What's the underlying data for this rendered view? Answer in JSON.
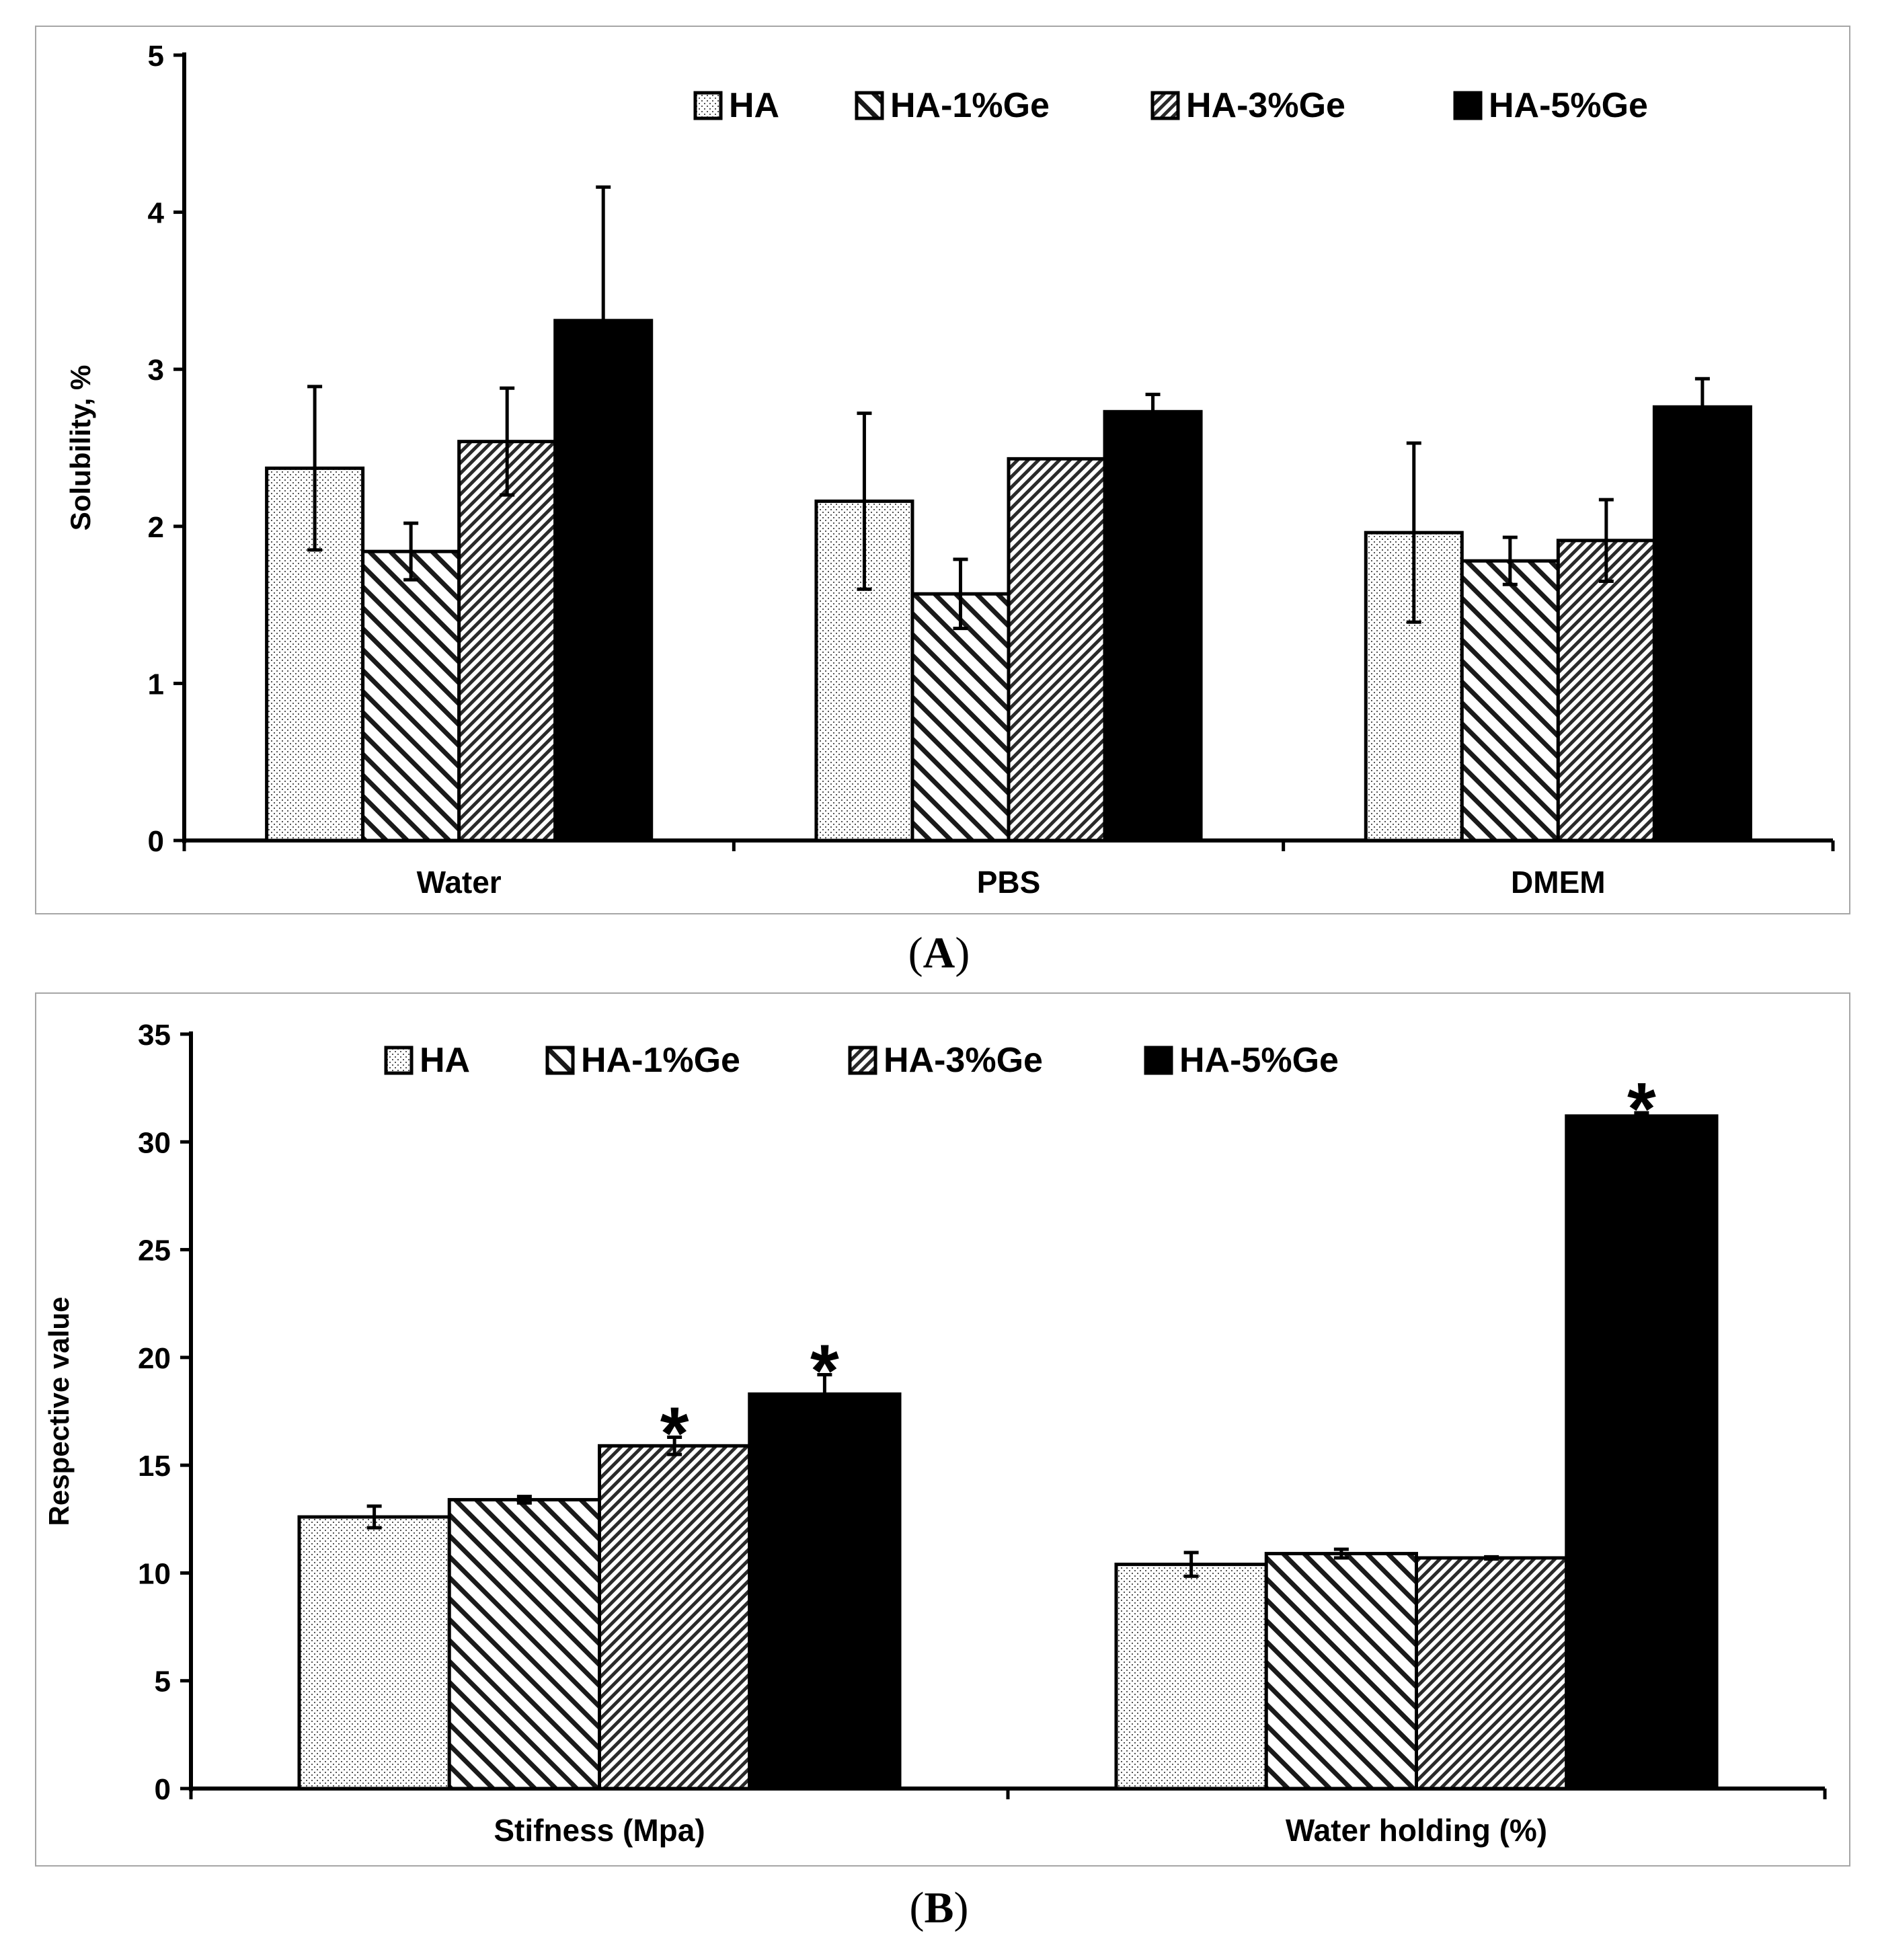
{
  "chart_data": [
    {
      "panel": "A",
      "caption_letter": "A",
      "type": "bar",
      "title": "",
      "xlabel": "",
      "ylabel": "Solubility, %",
      "ylim": [
        0,
        5
      ],
      "yticks": [
        0,
        1,
        2,
        3,
        4,
        5
      ],
      "categories": [
        "Water",
        "PBS",
        "DMEM"
      ],
      "legend_position": "top",
      "series": [
        {
          "name": "HA",
          "pattern": "dots",
          "values": [
            2.37,
            2.16,
            1.96
          ],
          "errors": [
            0.52,
            0.56,
            0.57
          ],
          "significant": [
            false,
            false,
            false
          ]
        },
        {
          "name": "HA-1%Ge",
          "pattern": "wide-hatch",
          "values": [
            1.84,
            1.57,
            1.78
          ],
          "errors": [
            0.18,
            0.22,
            0.15
          ],
          "significant": [
            false,
            false,
            false
          ]
        },
        {
          "name": "HA-3%Ge",
          "pattern": "dense-hatch",
          "values": [
            2.54,
            2.43,
            1.91
          ],
          "errors": [
            0.34,
            0.0,
            0.26
          ],
          "significant": [
            false,
            false,
            false
          ]
        },
        {
          "name": "HA-5%Ge",
          "pattern": "solid",
          "values": [
            3.31,
            2.73,
            2.76
          ],
          "errors": [
            0.85,
            0.11,
            0.18
          ],
          "significant": [
            false,
            false,
            false
          ]
        }
      ]
    },
    {
      "panel": "B",
      "caption_letter": "B",
      "type": "bar",
      "title": "",
      "xlabel": "",
      "ylabel": "Respective value",
      "ylim": [
        0,
        35
      ],
      "yticks": [
        0,
        5,
        10,
        15,
        20,
        25,
        30,
        35
      ],
      "categories": [
        "Stifness (Mpa)",
        "Water holding (%)"
      ],
      "legend_position": "top",
      "significance_marker": "*",
      "series": [
        {
          "name": "HA",
          "pattern": "dots",
          "values": [
            12.6,
            10.4
          ],
          "errors": [
            0.5,
            0.55
          ],
          "significant": [
            false,
            false
          ]
        },
        {
          "name": "HA-1%Ge",
          "pattern": "wide-hatch",
          "values": [
            13.4,
            10.9
          ],
          "errors": [
            0.15,
            0.2
          ],
          "significant": [
            false,
            false
          ]
        },
        {
          "name": "HA-3%Ge",
          "pattern": "dense-hatch",
          "values": [
            15.9,
            10.7
          ],
          "errors": [
            0.4,
            0.05
          ],
          "significant": [
            true,
            false
          ]
        },
        {
          "name": "HA-5%Ge",
          "pattern": "solid",
          "values": [
            18.3,
            31.2
          ],
          "errors": [
            0.9,
            0.15
          ],
          "significant": [
            true,
            true
          ]
        }
      ]
    }
  ]
}
